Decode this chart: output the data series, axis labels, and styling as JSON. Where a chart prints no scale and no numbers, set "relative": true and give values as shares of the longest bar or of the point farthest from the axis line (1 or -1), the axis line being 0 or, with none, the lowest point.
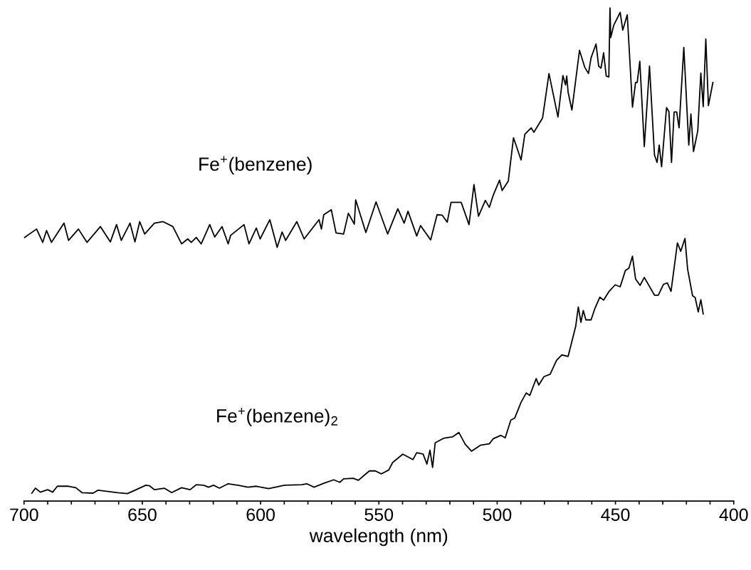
{
  "chart_data": {
    "type": "line",
    "xlabel": "wavelength (nm)",
    "relative": true,
    "grid": false,
    "legend": false,
    "marker": "none",
    "line_style": "solid",
    "tick_labels": "x",
    "xlim": [
      700,
      400
    ],
    "xticks": [
      700,
      {
        "value": 690,
        "label": null
      },
      {
        "value": 680,
        "label": null
      },
      {
        "value": 670,
        "label": null
      },
      {
        "value": 660,
        "label": null
      },
      650,
      {
        "value": 640,
        "label": null
      },
      {
        "value": 630,
        "label": null
      },
      {
        "value": 620,
        "label": null
      },
      {
        "value": 610,
        "label": null
      },
      600,
      {
        "value": 590,
        "label": null
      },
      {
        "value": 580,
        "label": null
      },
      {
        "value": 570,
        "label": null
      },
      {
        "value": 560,
        "label": null
      },
      550,
      {
        "value": 540,
        "label": null
      },
      {
        "value": 530,
        "label": null
      },
      {
        "value": 520,
        "label": null
      },
      {
        "value": 510,
        "label": null
      },
      500,
      {
        "value": 490,
        "label": null
      },
      {
        "value": 480,
        "label": null
      },
      {
        "value": 470,
        "label": null
      },
      {
        "value": 460,
        "label": null
      },
      450,
      {
        "value": 440,
        "label": null
      },
      {
        "value": 430,
        "label": null
      },
      {
        "value": 420,
        "label": null
      },
      {
        "value": 410,
        "label": null
      },
      400
    ],
    "series": [
      {
        "name": "Fe$^{+}$(benzene)",
        "color": "#000000",
        "x": [
          700,
          694.7,
          692.1,
          690.5,
          688.4,
          683.1,
          681.2,
          677,
          673.4,
          667.7,
          663.5,
          660.9,
          658.9,
          655.2,
          653.1,
          651.1,
          649,
          644.9,
          641.2,
          637.1,
          633.4,
          630.8,
          629.3,
          627.2,
          625.1,
          621.5,
          619.4,
          616.3,
          613.7,
          612.7,
          607,
          604.9,
          601.8,
          600.2,
          596.1,
          593,
          590.9,
          589.4,
          584.7,
          581.6,
          575.3,
          574.3,
          573.3,
          570.1,
          568.1,
          564.9,
          562.9,
          560.4,
          559.8,
          555.5,
          551.2,
          546.3,
          542,
          539.3,
          537.7,
          534,
          532.4,
          528.1,
          525.4,
          523.2,
          521.1,
          519.5,
          515.2,
          511.9,
          509.8,
          507.9,
          505,
          503.3,
          501.7,
          499,
          497.9,
          495.3,
          493.1,
          489.9,
          488.3,
          485.6,
          484.5,
          480.8,
          478.1,
          474.3,
          472.2,
          471.1,
          470.6,
          470,
          468.4,
          465.2,
          463,
          461.4,
          460.3,
          458.2,
          457.1,
          456.1,
          455,
          453.9,
          452.8,
          452.3,
          452,
          450.7,
          448,
          446.9,
          445,
          442.8,
          441.5,
          440.8,
          439.7,
          437.8,
          435.6,
          433.5,
          432.4,
          431.5,
          430.5,
          428.4,
          427.4,
          426.3,
          425.2,
          424.1,
          423.1,
          421.1,
          419,
          418.1,
          417,
          415.2,
          413.9,
          412.9,
          411.8,
          410.7,
          408.8
        ],
        "values": [
          0.533,
          0.551,
          0.524,
          0.548,
          0.524,
          0.563,
          0.528,
          0.551,
          0.524,
          0.556,
          0.525,
          0.56,
          0.528,
          0.563,
          0.525,
          0.566,
          0.541,
          0.563,
          0.566,
          0.556,
          0.521,
          0.531,
          0.524,
          0.534,
          0.521,
          0.56,
          0.535,
          0.556,
          0.521,
          0.538,
          0.56,
          0.521,
          0.553,
          0.531,
          0.57,
          0.514,
          0.545,
          0.528,
          0.566,
          0.531,
          0.57,
          0.551,
          0.58,
          0.59,
          0.543,
          0.541,
          0.583,
          0.561,
          0.61,
          0.544,
          0.606,
          0.541,
          0.592,
          0.563,
          0.587,
          0.537,
          0.558,
          0.529,
          0.58,
          0.579,
          0.565,
          0.605,
          0.605,
          0.56,
          0.641,
          0.577,
          0.609,
          0.595,
          0.619,
          0.65,
          0.629,
          0.648,
          0.736,
          0.691,
          0.743,
          0.756,
          0.747,
          0.776,
          0.866,
          0.778,
          0.862,
          0.843,
          0.861,
          0.828,
          0.792,
          0.913,
          0.879,
          0.866,
          0.898,
          0.926,
          0.881,
          0.877,
          0.908,
          0.861,
          0.859,
          1.0,
          0.939,
          0.964,
          0.99,
          0.954,
          0.985,
          0.798,
          0.848,
          0.848,
          0.891,
          0.718,
          0.881,
          0.701,
          0.686,
          0.721,
          0.677,
          0.797,
          0.789,
          0.686,
          0.788,
          0.788,
          0.756,
          0.919,
          0.721,
          0.784,
          0.708,
          0.75,
          0.867,
          0.799,
          0.936,
          0.801,
          0.848
        ]
      },
      {
        "name": "Fe$^{+}$(benzene)$_{2}$",
        "color": "#000000",
        "x": [
          696.7,
          695.2,
          693.1,
          690,
          687.9,
          685.9,
          681.2,
          678.1,
          675.5,
          670.8,
          668.7,
          660.4,
          656.3,
          652.6,
          648.5,
          647,
          644.9,
          640.7,
          637.6,
          633.4,
          629.8,
          627.2,
          624.1,
          622,
          619.9,
          617.4,
          613.7,
          609.6,
          605.4,
          601.8,
          596.6,
          589.9,
          582.6,
          580.5,
          577.4,
          573.3,
          569.1,
          566.5,
          564.9,
          560.8,
          558.7,
          554,
          551.5,
          549,
          545.8,
          544.2,
          539.9,
          535.6,
          534,
          531.3,
          529.7,
          528.4,
          527.3,
          526.2,
          522.7,
          518.9,
          516.2,
          513.5,
          510.8,
          507.1,
          503.3,
          501.7,
          498.5,
          496.6,
          494.2,
          492.6,
          489.9,
          487.7,
          486.2,
          483.5,
          482.4,
          480.2,
          477.6,
          474.9,
          472.7,
          470,
          466.8,
          465.7,
          464.6,
          463.6,
          462.5,
          460.3,
          458.7,
          456.6,
          455,
          452.8,
          450.1,
          448,
          445.8,
          444.3,
          442.8,
          441.5,
          439.6,
          437.8,
          433.5,
          431.9,
          429.7,
          428.1,
          426.5,
          423.8,
          422.4,
          420.6,
          419.5,
          417.4,
          416.3,
          415,
          413.9,
          412.9
        ],
        "values": [
          0.016,
          0.026,
          0.018,
          0.023,
          0.018,
          0.03,
          0.03,
          0.027,
          0.017,
          0.016,
          0.022,
          0.017,
          0.015,
          0.023,
          0.032,
          0.031,
          0.023,
          0.026,
          0.017,
          0.027,
          0.023,
          0.033,
          0.032,
          0.028,
          0.032,
          0.026,
          0.035,
          0.032,
          0.028,
          0.03,
          0.025,
          0.032,
          0.033,
          0.035,
          0.028,
          0.036,
          0.043,
          0.038,
          0.045,
          0.046,
          0.042,
          0.061,
          0.061,
          0.055,
          0.063,
          0.078,
          0.095,
          0.084,
          0.098,
          0.095,
          0.075,
          0.103,
          0.068,
          0.118,
          0.127,
          0.13,
          0.139,
          0.115,
          0.101,
          0.113,
          0.116,
          0.126,
          0.133,
          0.128,
          0.164,
          0.168,
          0.2,
          0.219,
          0.214,
          0.248,
          0.235,
          0.252,
          0.257,
          0.285,
          0.296,
          0.293,
          0.354,
          0.393,
          0.362,
          0.386,
          0.367,
          0.367,
          0.39,
          0.413,
          0.407,
          0.424,
          0.438,
          0.434,
          0.467,
          0.472,
          0.496,
          0.45,
          0.437,
          0.453,
          0.417,
          0.417,
          0.439,
          0.442,
          0.425,
          0.523,
          0.506,
          0.532,
          0.47,
          0.416,
          0.412,
          0.383,
          0.408,
          0.379
        ]
      }
    ]
  }
}
